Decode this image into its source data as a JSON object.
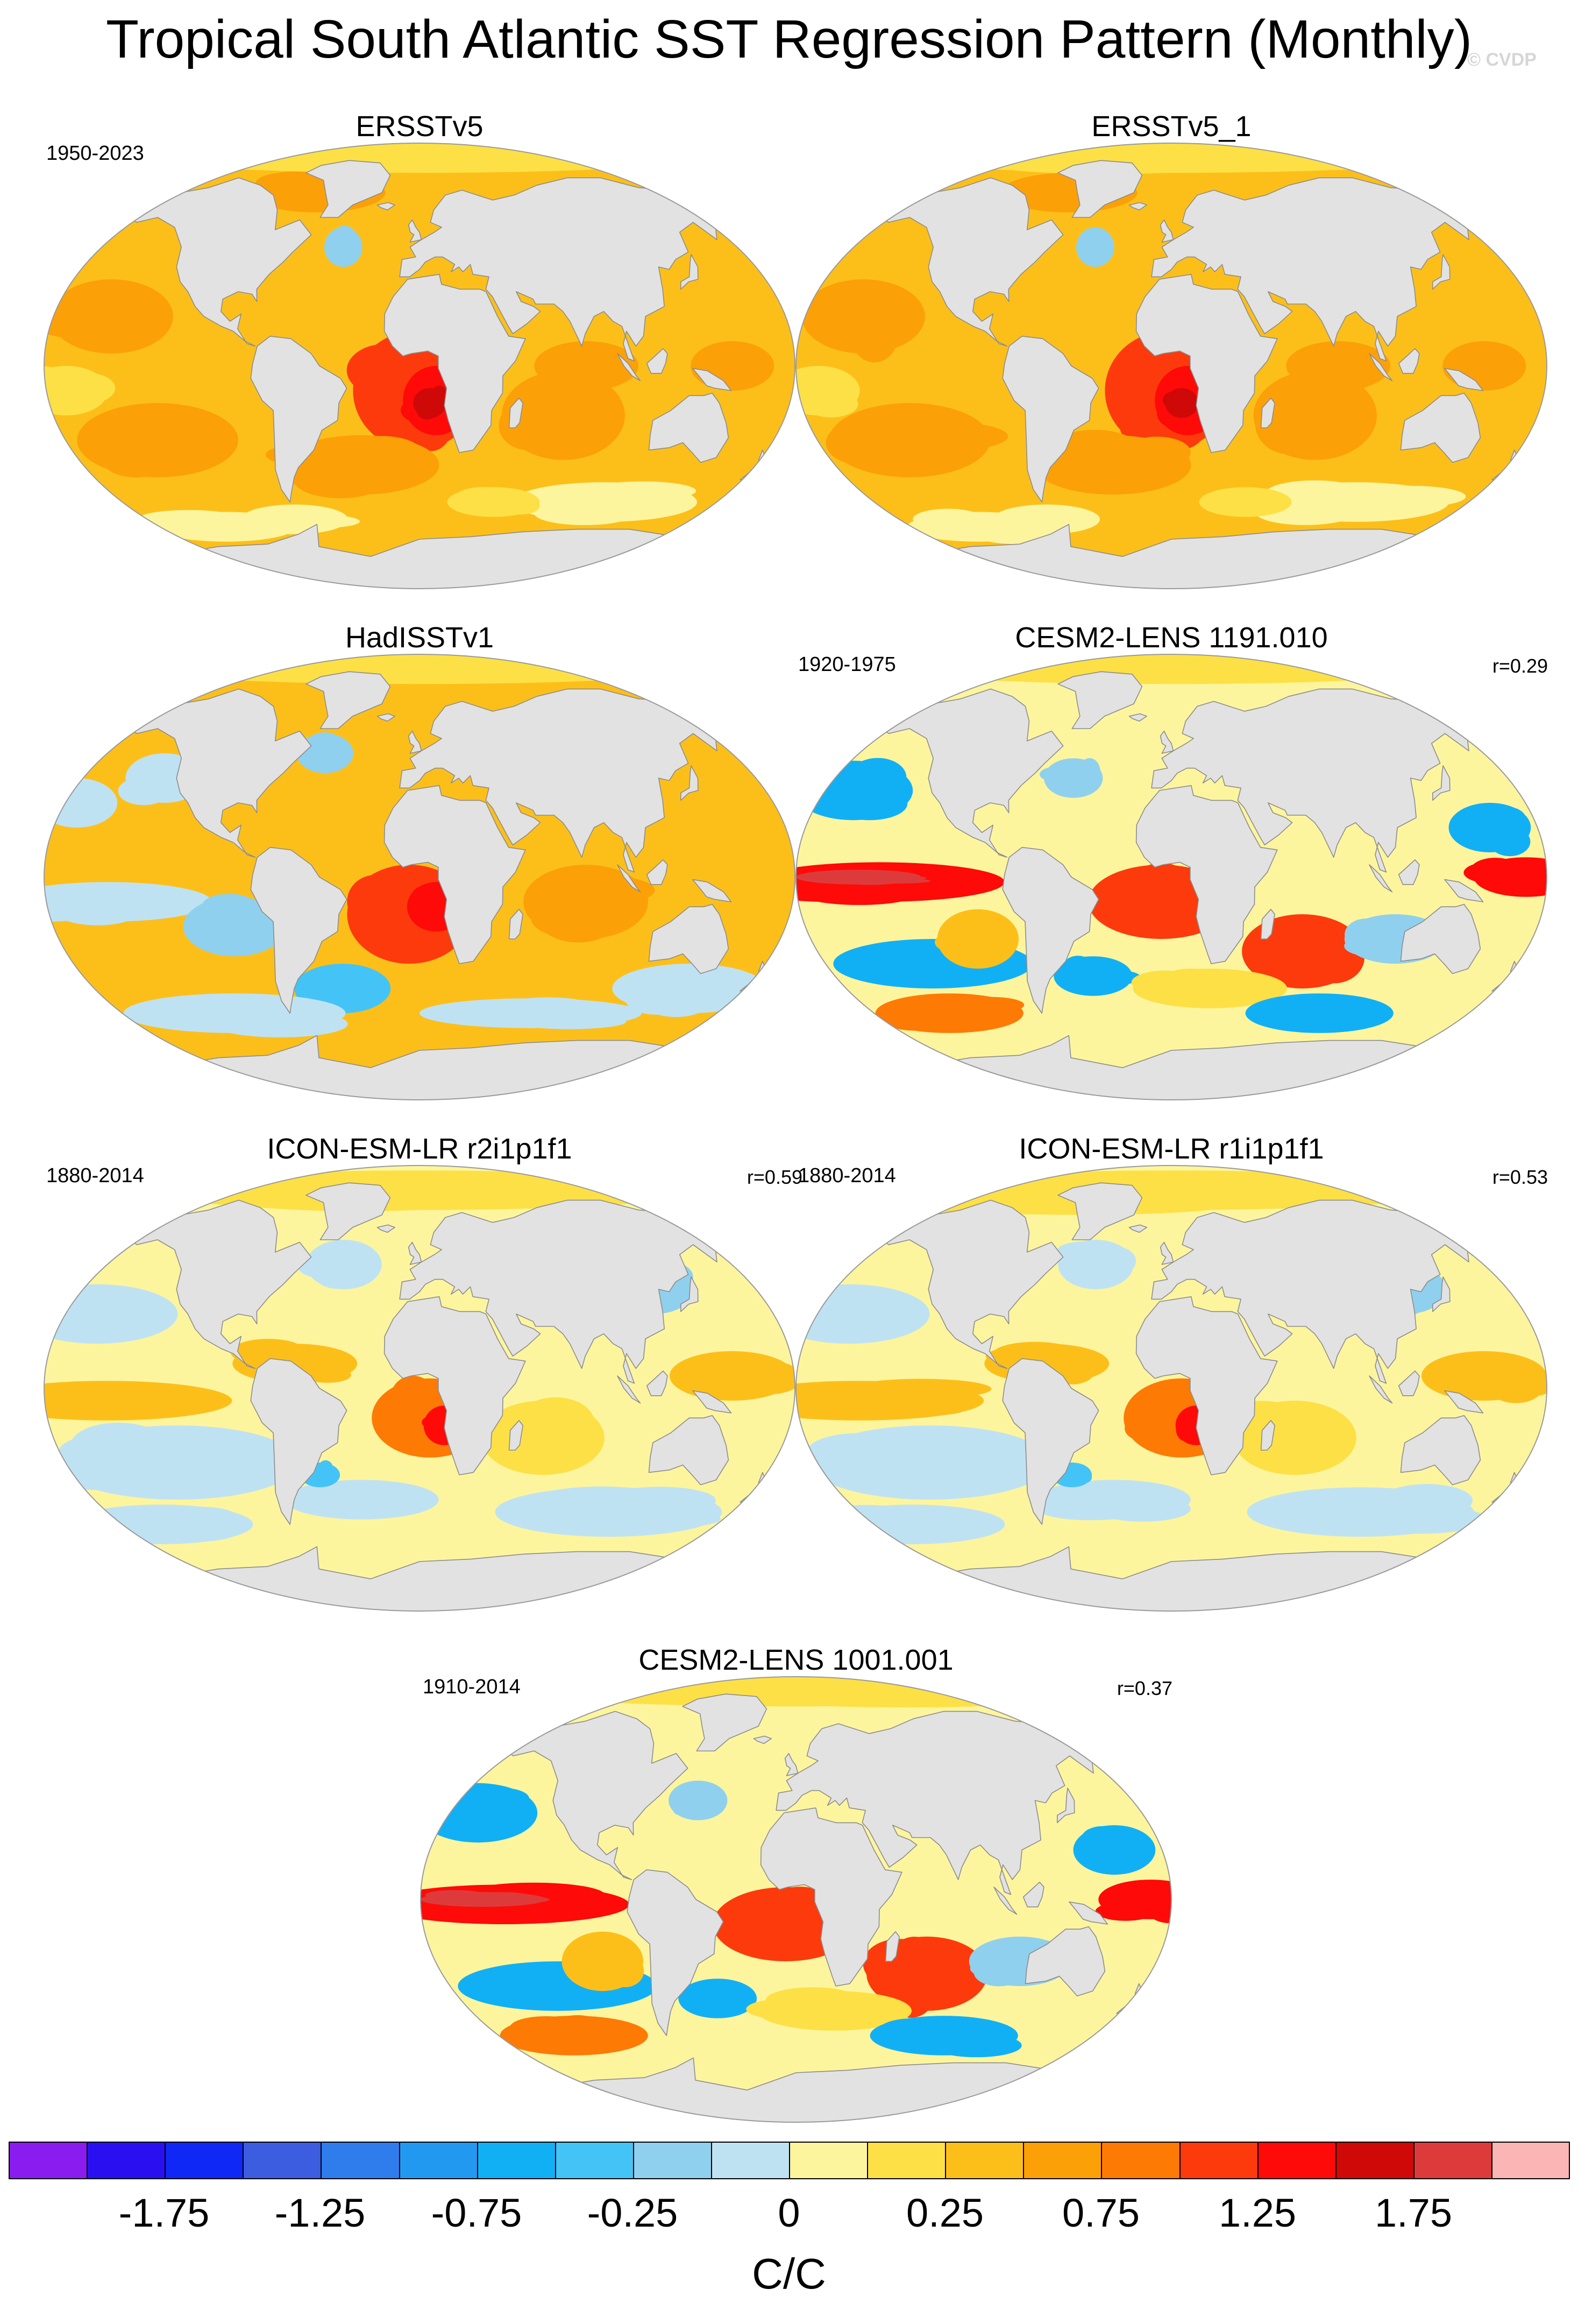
{
  "title": "Tropical South Atlantic SST Regression Pattern (Monthly)",
  "credit": "© CVDP",
  "panels": [
    {
      "title": "ERSSTv5",
      "period": "1950-2023",
      "corr": "",
      "style": "obs_warm",
      "seed": 11
    },
    {
      "title": "ERSSTv5_1",
      "period": "",
      "corr": "",
      "style": "obs_warm",
      "seed": 23
    },
    {
      "title": "HadISSTv1",
      "period": "",
      "corr": "",
      "style": "obs_mixed",
      "seed": 37
    },
    {
      "title": "CESM2-LENS 1191.010",
      "period": "1920-1975",
      "corr": "r=0.29",
      "style": "cesm",
      "seed": 41
    },
    {
      "title": "ICON-ESM-LR r2i1p1f1",
      "period": "1880-2014",
      "corr": "r=0.59",
      "style": "icon",
      "seed": 53
    },
    {
      "title": "ICON-ESM-LR r1i1p1f1",
      "period": "1880-2014",
      "corr": "r=0.53",
      "style": "icon",
      "seed": 67
    },
    {
      "title": "CESM2-LENS 1001.001",
      "period": "1910-2014",
      "corr": "r=0.37",
      "style": "cesm",
      "seed": 79
    }
  ],
  "colorbar": {
    "colors": [
      "#8a1cef",
      "#2a10f0",
      "#1028f5",
      "#3c5de0",
      "#2f7ded",
      "#2299f0",
      "#11b0f5",
      "#44c4f6",
      "#8fd0ee",
      "#bfe2f3",
      "#fdf59e",
      "#fde046",
      "#fcbf1a",
      "#fca008",
      "#fd7a05",
      "#fd3a0c",
      "#fe0a08",
      "#cf0808",
      "#dd3b3b",
      "#fbb5b5"
    ],
    "labels": [
      "-1.75",
      "-1.25",
      "-0.75",
      "-0.25",
      "0",
      "0.25",
      "0.75",
      "1.25",
      "1.75"
    ],
    "units": "C/C"
  }
}
